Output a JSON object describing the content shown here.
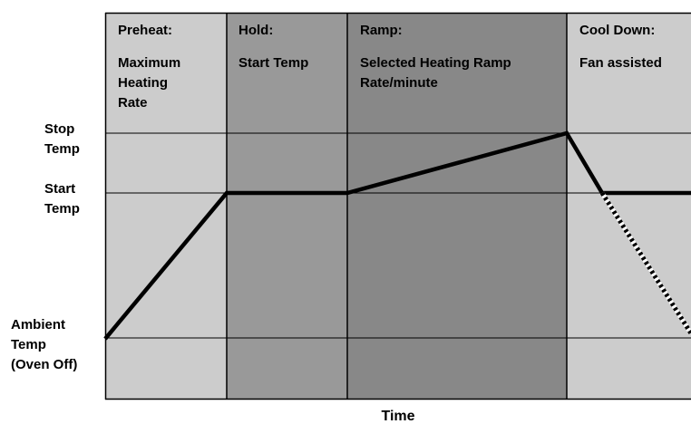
{
  "phases": [
    {
      "name": "Preheat:",
      "description": [
        "Maximum",
        "Heating",
        "Rate"
      ],
      "shade": "#cccccc"
    },
    {
      "name": "Hold:",
      "description": [
        "Start Temp"
      ],
      "shade": "#999999"
    },
    {
      "name": "Ramp:",
      "description": [
        "Selected Heating Ramp",
        "Rate/minute"
      ],
      "shade": "#888888"
    },
    {
      "name": "Cool Down:",
      "description": [
        "Fan assisted"
      ],
      "shade": "#cccccc"
    }
  ],
  "levels": {
    "stop": [
      "Stop",
      "Temp"
    ],
    "start": [
      "Start",
      "Temp"
    ],
    "ambient": [
      "Ambient",
      "Temp",
      "(Oven Off)"
    ]
  },
  "x_axis_label": "Time"
}
